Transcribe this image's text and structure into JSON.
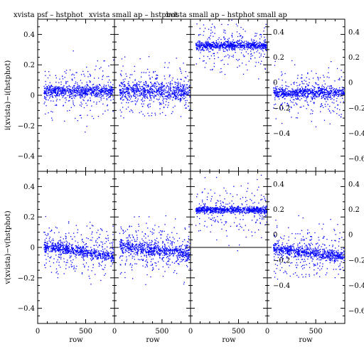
{
  "chart_data": {
    "type": "scatter",
    "layout": "2 rows x 4 columns of panels, shared x per column, shared y per row",
    "panel_titles": [
      "xvista psf – hstphot",
      "xvista small ap – hstphot",
      "xvista small ap – hstphot small ap",
      ""
    ],
    "xlabel": "row",
    "ylabels": [
      "i(xvista)−i(hstphot)",
      "v(xvista)−v(hstphot)"
    ],
    "xlim": [
      0,
      800
    ],
    "ylim": [
      -0.5,
      0.5
    ],
    "x_ticks": [
      "0",
      "500"
    ],
    "y_ticks_left": [
      "−0.4",
      "−0.2",
      "0",
      "0.2",
      "0.4"
    ],
    "y_ticks_right": [
      "−0.6",
      "−0.4",
      "−0.2",
      "0",
      "0.2",
      "0.4"
    ],
    "point_color": "#0000ff",
    "grid": false,
    "legend": "none",
    "panels": [
      {
        "row": 0,
        "col": 0,
        "band": "i",
        "center_y": 0.03,
        "core_spread": 0.025,
        "outlier_fraction": 0.3,
        "x_range": [
          60,
          790
        ]
      },
      {
        "row": 0,
        "col": 1,
        "band": "i",
        "center_y": 0.03,
        "core_spread": 0.04,
        "outlier_fraction": 0.35,
        "x_range": [
          50,
          790
        ]
      },
      {
        "row": 0,
        "col": 2,
        "band": "i",
        "center_y": 0.33,
        "core_spread": 0.02,
        "outlier_fraction": 0.25,
        "x_range": [
          50,
          790
        ],
        "reference_line_y": 0
      },
      {
        "row": 0,
        "col": 3,
        "band": "i",
        "center_y": 0.02,
        "core_spread": 0.025,
        "outlier_fraction": 0.3,
        "x_range": [
          60,
          790
        ]
      },
      {
        "row": 1,
        "col": 0,
        "band": "v",
        "center_y": -0.02,
        "core_spread": 0.025,
        "outlier_fraction": 0.35,
        "x_range": [
          60,
          790
        ],
        "trend": -0.04
      },
      {
        "row": 1,
        "col": 1,
        "band": "v",
        "center_y": -0.01,
        "core_spread": 0.03,
        "outlier_fraction": 0.35,
        "x_range": [
          50,
          790
        ],
        "trend": -0.03
      },
      {
        "row": 1,
        "col": 2,
        "band": "v",
        "center_y": 0.25,
        "core_spread": 0.015,
        "outlier_fraction": 0.25,
        "x_range": [
          50,
          790
        ],
        "reference_line_y": 0
      },
      {
        "row": 1,
        "col": 3,
        "band": "v",
        "center_y": -0.03,
        "core_spread": 0.025,
        "outlier_fraction": 0.35,
        "x_range": [
          60,
          790
        ],
        "trend": -0.03
      }
    ]
  }
}
